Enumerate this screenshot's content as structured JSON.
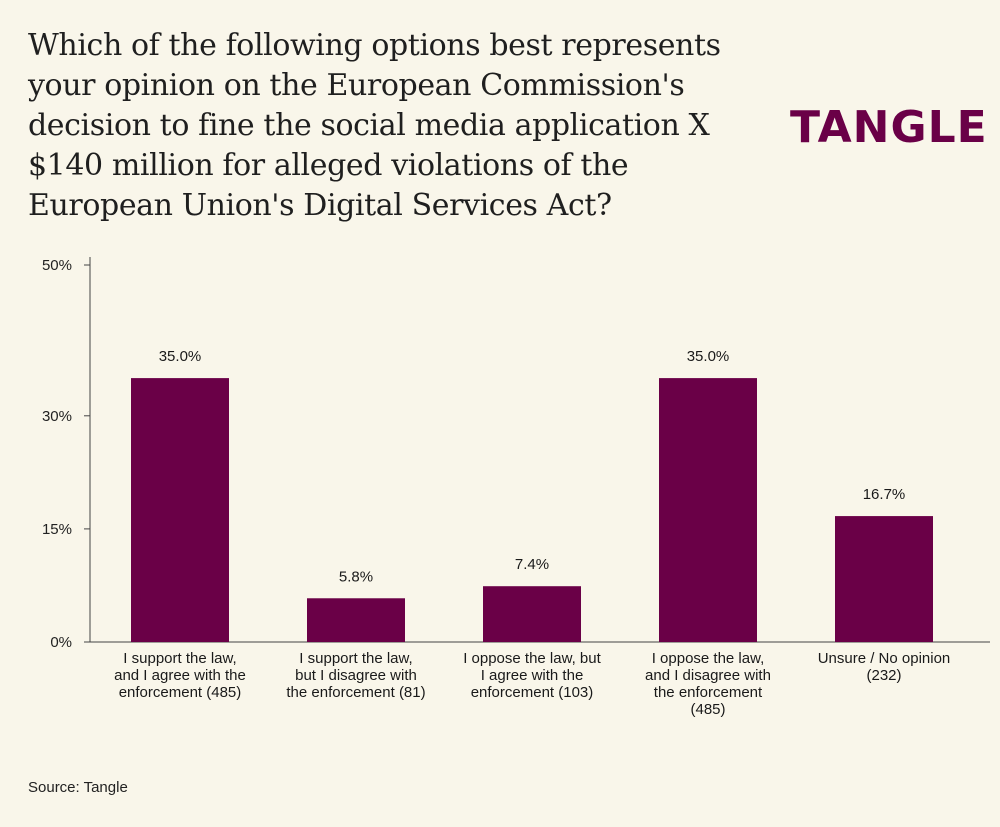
{
  "brand": {
    "logo_text": "TANGLE",
    "accent": "#6a0047",
    "background": "#f9f6ea"
  },
  "source": "Source: Tangle",
  "chart_data": {
    "type": "bar",
    "title": "Which of the following options best represents your opinion on the European Commission's decision to fine the social media application X $140 million for alleged violations of the European Union's Digital Services Act?",
    "categories": [
      "I support the law, and I agree with the enforcement (485)",
      "I support the law, but I disagree with the enforcement (81)",
      "I oppose the law, but I agree with the enforcement (103)",
      "I oppose the law, and I disagree with the enforcement (485)",
      "Unsure / No opinion (232)"
    ],
    "category_lines": [
      [
        "I support the law,",
        "and I agree with the",
        "enforcement (485)"
      ],
      [
        "I support the law,",
        "but I disagree with",
        "the enforcement (81)"
      ],
      [
        "I oppose the law, but",
        "I agree with the",
        "enforcement (103)"
      ],
      [
        "I oppose the law,",
        "and I disagree with",
        "the enforcement",
        "(485)"
      ],
      [
        "Unsure / No opinion",
        "(232)"
      ]
    ],
    "values": [
      35.0,
      5.8,
      7.4,
      35.0,
      16.7
    ],
    "value_labels": [
      "35.0%",
      "5.8%",
      "7.4%",
      "35.0%",
      "16.7%"
    ],
    "ylim": [
      0,
      50
    ],
    "yticks": [
      0,
      15,
      30,
      50
    ],
    "ytick_labels": [
      "0%",
      "15%",
      "30%",
      "50%"
    ],
    "xlabel": "",
    "ylabel": "",
    "grid": false,
    "bar_color": "#6a0047"
  }
}
